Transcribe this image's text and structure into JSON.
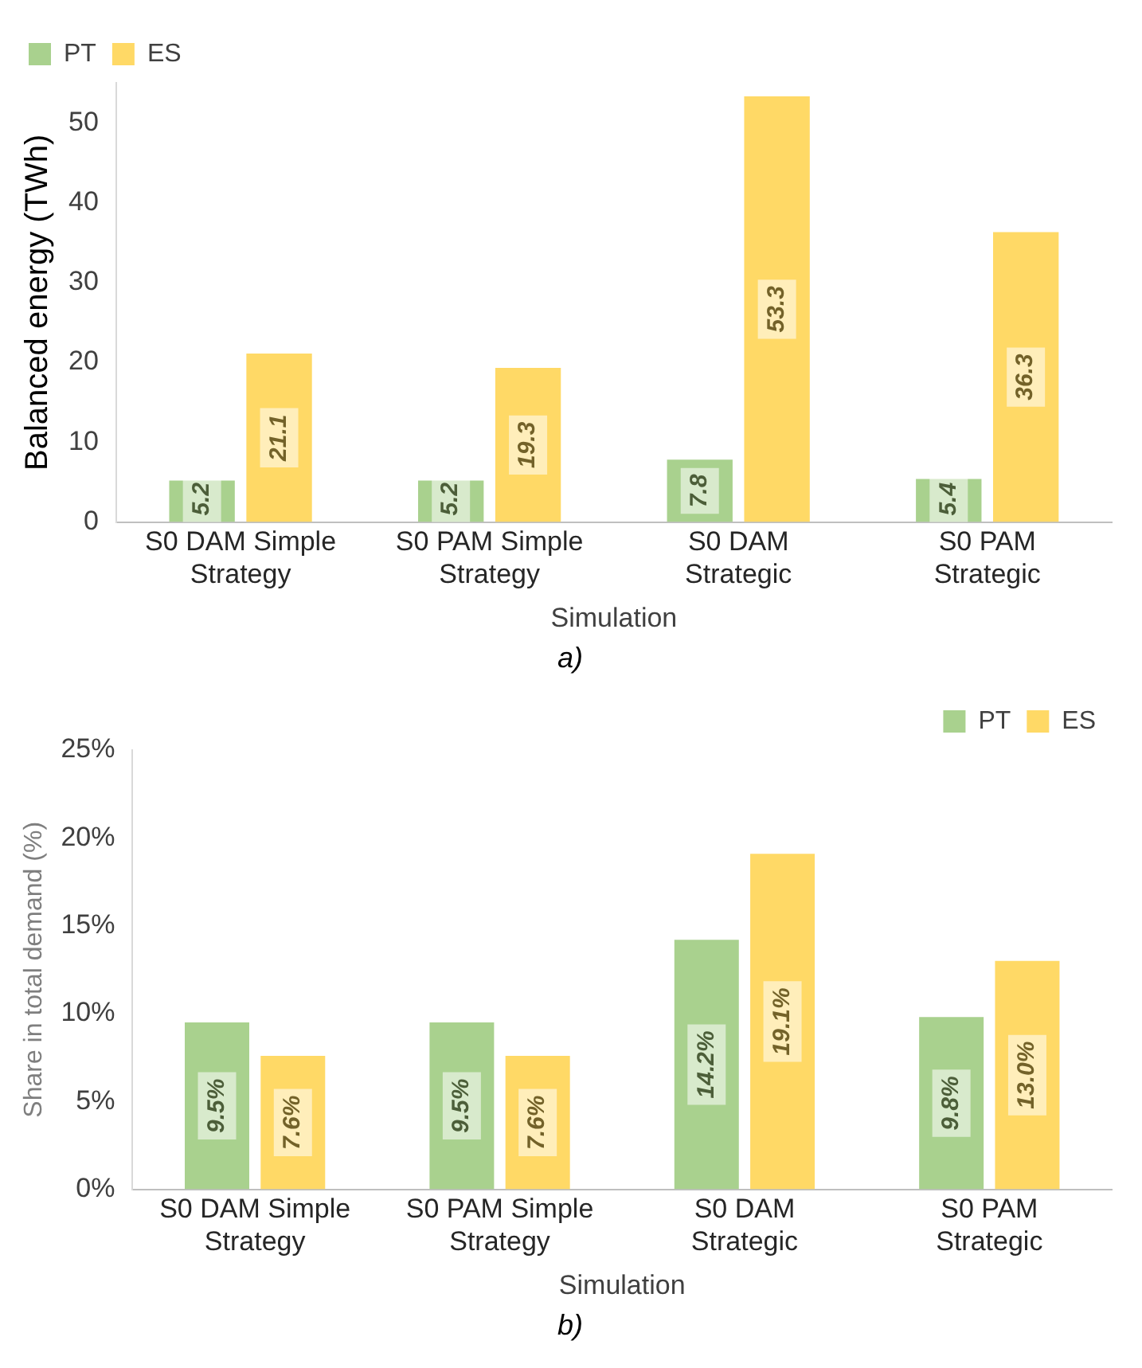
{
  "chart_data": [
    {
      "type": "bar",
      "categories": [
        "S0 DAM Simple Strategy",
        "S0 PAM Simple Strategy",
        "S0 DAM Strategic",
        "S0 PAM Strategic"
      ],
      "xlabel": "Simulation",
      "ylabel": "Balanced energy (TWh)",
      "ylim": [
        0,
        55
      ],
      "yticks": [
        0,
        10,
        20,
        30,
        40,
        50
      ],
      "grid": false,
      "legend": "top left",
      "data_labels": true,
      "series": [
        {
          "name": "PT",
          "color": "#a9d18e",
          "values": [
            5.2,
            5.2,
            7.8,
            5.4
          ]
        },
        {
          "name": "ES",
          "color": "#ffd966",
          "values": [
            21.1,
            19.3,
            53.3,
            36.3
          ]
        }
      ],
      "annotations": [
        "a)"
      ]
    },
    {
      "type": "bar",
      "categories": [
        "S0 DAM Simple Strategy",
        "S0 PAM Simple Strategy",
        "S0 DAM Strategic",
        "S0 PAM Strategic"
      ],
      "xlabel": "Simulation",
      "ylabel": "Share in total demand (%)",
      "ylim": [
        0,
        25
      ],
      "yticks": [
        {
          "value": 0,
          "label": "0%"
        },
        {
          "value": 5,
          "label": "5%"
        },
        {
          "value": 10,
          "label": "10%"
        },
        {
          "value": 15,
          "label": "15%"
        },
        {
          "value": 20,
          "label": "20%"
        },
        {
          "value": 25,
          "label": "25%"
        }
      ],
      "grid": false,
      "legend": "top right",
      "series": [
        {
          "name": "PT",
          "color": "#a9d18e",
          "values": [
            9.5,
            9.5,
            14.2,
            9.8
          ],
          "value_labels": [
            "9.5%",
            "9.5%",
            "14.2%",
            "9.8%"
          ]
        },
        {
          "name": "ES",
          "color": "#ffd966",
          "values": [
            7.6,
            7.6,
            19.1,
            13.0
          ],
          "value_labels": [
            "7.6%",
            "7.6%",
            "19.1%",
            "13.0%"
          ]
        }
      ],
      "annotations": [
        "b)"
      ]
    }
  ]
}
